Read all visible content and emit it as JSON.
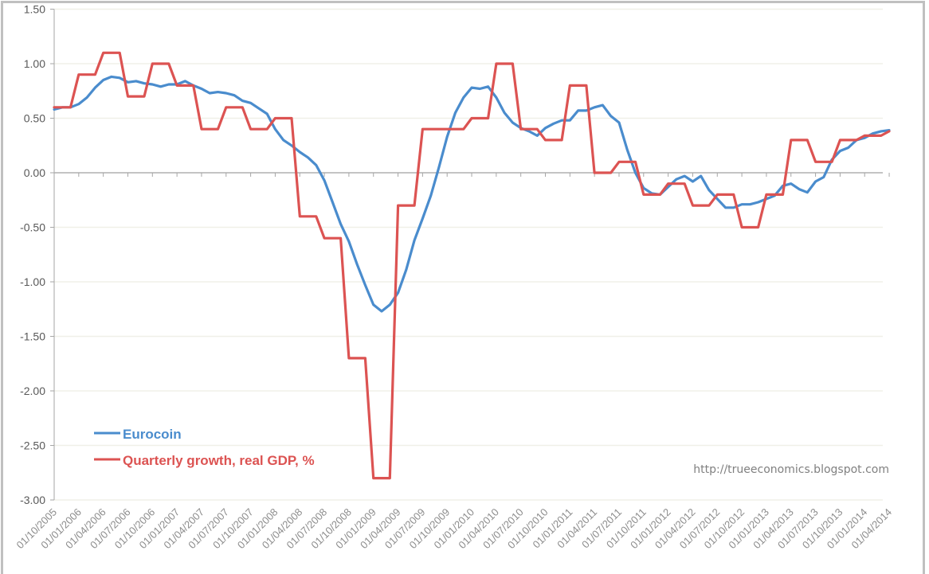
{
  "chart_data": {
    "type": "line",
    "title": "",
    "xlabel": "",
    "ylabel": "",
    "ylim": [
      -3.0,
      1.5
    ],
    "y_ticks": [
      "1.50",
      "1.00",
      "0.50",
      "0.00",
      "-0.50",
      "-1.00",
      "-1.50",
      "-2.00",
      "-2.50",
      "-3.00"
    ],
    "y_tick_values": [
      1.5,
      1.0,
      0.5,
      0.0,
      -0.5,
      -1.0,
      -1.5,
      -2.0,
      -2.5,
      -3.0
    ],
    "grid": true,
    "legend_position": "bottom-left",
    "x_tick_labels": [
      "01/10/2005",
      "01/01/2006",
      "01/04/2006",
      "01/07/2006",
      "01/10/2006",
      "01/01/2007",
      "01/04/2007",
      "01/07/2007",
      "01/10/2007",
      "01/01/2008",
      "01/04/2008",
      "01/07/2008",
      "01/10/2008",
      "01/01/2009",
      "01/04/2009",
      "01/07/2009",
      "01/10/2009",
      "01/01/2010",
      "01/04/2010",
      "01/07/2010",
      "01/10/2010",
      "01/01/2011",
      "01/04/2011",
      "01/07/2011",
      "01/10/2011",
      "01/01/2012",
      "01/04/2012",
      "01/07/2012",
      "01/10/2012",
      "01/01/2013",
      "01/04/2013",
      "01/07/2013",
      "01/10/2013",
      "01/01/2014",
      "01/04/2014"
    ],
    "x_frequency": "monthly, Oct 2005 to Apr 2014",
    "series": [
      {
        "name": "Eurocoin",
        "color": "#4a8ccd",
        "values": [
          0.58,
          0.6,
          0.6,
          0.63,
          0.69,
          0.78,
          0.85,
          0.88,
          0.87,
          0.83,
          0.84,
          0.82,
          0.81,
          0.79,
          0.81,
          0.81,
          0.84,
          0.8,
          0.77,
          0.73,
          0.74,
          0.73,
          0.71,
          0.66,
          0.64,
          0.59,
          0.54,
          0.4,
          0.3,
          0.25,
          0.19,
          0.14,
          0.07,
          -0.07,
          -0.27,
          -0.47,
          -0.63,
          -0.84,
          -1.03,
          -1.21,
          -1.27,
          -1.21,
          -1.1,
          -0.89,
          -0.62,
          -0.42,
          -0.21,
          0.05,
          0.33,
          0.55,
          0.69,
          0.78,
          0.77,
          0.79,
          0.69,
          0.55,
          0.46,
          0.41,
          0.38,
          0.34,
          0.41,
          0.45,
          0.48,
          0.48,
          0.57,
          0.57,
          0.6,
          0.62,
          0.52,
          0.46,
          0.21,
          0.0,
          -0.14,
          -0.19,
          -0.2,
          -0.13,
          -0.06,
          -0.03,
          -0.08,
          -0.03,
          -0.16,
          -0.24,
          -0.32,
          -0.32,
          -0.29,
          -0.29,
          -0.27,
          -0.24,
          -0.21,
          -0.12,
          -0.1,
          -0.15,
          -0.18,
          -0.08,
          -0.04,
          0.12,
          0.2,
          0.23,
          0.3,
          0.32,
          0.36,
          0.38,
          0.39
        ]
      },
      {
        "name": "Quarterly growth, real GDP, %",
        "color": "#dc5352",
        "values": [
          0.6,
          0.6,
          0.6,
          0.9,
          0.9,
          0.9,
          1.1,
          1.1,
          1.1,
          0.7,
          0.7,
          0.7,
          1.0,
          1.0,
          1.0,
          0.8,
          0.8,
          0.8,
          0.4,
          0.4,
          0.4,
          0.6,
          0.6,
          0.6,
          0.4,
          0.4,
          0.4,
          0.5,
          0.5,
          0.5,
          -0.4,
          -0.4,
          -0.4,
          -0.6,
          -0.6,
          -0.6,
          -1.7,
          -1.7,
          -1.7,
          -2.8,
          -2.8,
          -2.8,
          -0.3,
          -0.3,
          -0.3,
          0.4,
          0.4,
          0.4,
          0.4,
          0.4,
          0.4,
          0.5,
          0.5,
          0.5,
          1.0,
          1.0,
          1.0,
          0.4,
          0.4,
          0.4,
          0.3,
          0.3,
          0.3,
          0.8,
          0.8,
          0.8,
          0.0,
          0.0,
          0.0,
          0.1,
          0.1,
          0.1,
          -0.2,
          -0.2,
          -0.2,
          -0.1,
          -0.1,
          -0.1,
          -0.3,
          -0.3,
          -0.3,
          -0.2,
          -0.2,
          -0.2,
          -0.5,
          -0.5,
          -0.5,
          -0.2,
          -0.2,
          -0.2,
          0.3,
          0.3,
          0.3,
          0.1,
          0.1,
          0.1,
          0.3,
          0.3,
          0.3,
          0.34,
          0.34,
          0.34,
          0.38
        ]
      }
    ],
    "annotations": [
      "http://trueeconomics.blogspot.com"
    ]
  },
  "legend": {
    "items": [
      {
        "label": "Eurocoin",
        "color": "#4a8ccd"
      },
      {
        "label": "Quarterly growth, real GDP, %",
        "color": "#dc5352"
      }
    ]
  },
  "watermark": "http://trueeconomics.blogspot.com"
}
